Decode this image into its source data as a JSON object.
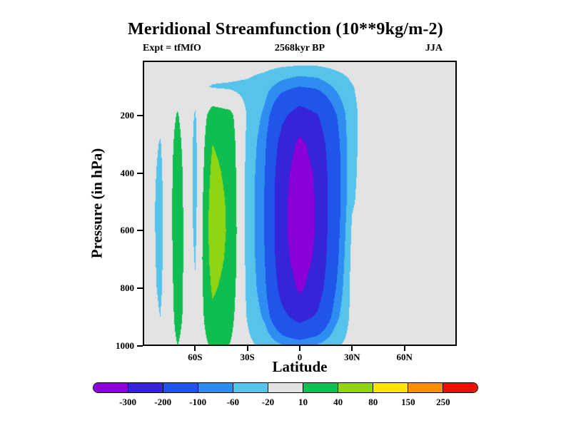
{
  "chart_data": {
    "type": "filled_contour",
    "title": "Meridional Streamfunction (10**9kg/m-2)",
    "annotations": {
      "left": "Expt = tfMfO",
      "center": "2568kyr BP",
      "right": "JJA"
    },
    "xlabel": "Latitude",
    "ylabel": "Pressure (in hPa)",
    "x_range": [
      -90,
      90
    ],
    "y_range": [
      10,
      1000
    ],
    "x_ticks": [
      {
        "value": -60,
        "label": "60S"
      },
      {
        "value": -30,
        "label": "30S"
      },
      {
        "value": 0,
        "label": "0"
      },
      {
        "value": 30,
        "label": "30N"
      },
      {
        "value": 60,
        "label": "60N"
      }
    ],
    "y_ticks": [
      {
        "value": 200,
        "label": "200"
      },
      {
        "value": 400,
        "label": "400"
      },
      {
        "value": 600,
        "label": "600"
      },
      {
        "value": 800,
        "label": "800"
      },
      {
        "value": 1000,
        "label": "1000"
      }
    ],
    "contour_levels": [
      -300,
      -200,
      -100,
      -60,
      -20,
      10,
      40,
      80,
      150,
      250
    ],
    "contour_colors": [
      "#8b00d6",
      "#3524d8",
      "#1f55e8",
      "#2f8df2",
      "#55c3ea",
      "#e3e3e3",
      "#0fbe4e",
      "#8fd612",
      "#ffe400",
      "#ff9000",
      "#ec1000"
    ],
    "colorbar_labels": [
      "-300",
      "-200",
      "-100",
      "-60",
      "-20",
      "10",
      "40",
      "80",
      "150",
      "250"
    ],
    "grid": {
      "lats": [
        -90,
        -80,
        -70,
        -60,
        -50,
        -40,
        -30,
        -20,
        -10,
        0,
        10,
        20,
        30,
        40,
        50,
        60,
        70,
        80,
        90
      ],
      "pressures": [
        10,
        100,
        200,
        300,
        400,
        500,
        600,
        700,
        800,
        900,
        1000
      ],
      "values_by_pressure": [
        [
          0,
          0,
          0,
          0,
          0,
          0,
          0,
          0,
          0,
          -2,
          -2,
          0,
          0,
          0,
          0,
          0,
          0,
          0,
          0
        ],
        [
          0,
          -5,
          0,
          -12,
          -22,
          -24,
          -28,
          -45,
          -80,
          -100,
          -90,
          -55,
          -22,
          -3,
          0,
          0,
          0,
          0,
          0
        ],
        [
          0,
          -12,
          12,
          -22,
          25,
          18,
          -22,
          -70,
          -180,
          -250,
          -205,
          -110,
          -30,
          0,
          0,
          0,
          0,
          0,
          0
        ],
        [
          0,
          -22,
          20,
          -26,
          40,
          26,
          -26,
          -90,
          -240,
          -320,
          -262,
          -130,
          -30,
          2,
          0,
          0,
          0,
          0,
          0
        ],
        [
          0,
          -26,
          25,
          -28,
          50,
          30,
          -28,
          -100,
          -268,
          -345,
          -285,
          -138,
          -28,
          2,
          0,
          0,
          0,
          0,
          0
        ],
        [
          0,
          -28,
          27,
          -28,
          58,
          33,
          -29,
          -104,
          -278,
          -352,
          -292,
          -140,
          -24,
          1,
          0,
          0,
          0,
          0,
          0
        ],
        [
          0,
          -28,
          27,
          -26,
          60,
          34,
          -29,
          -104,
          -278,
          -352,
          -292,
          -135,
          -14,
          0,
          0,
          0,
          0,
          0,
          0
        ],
        [
          0,
          -27,
          25,
          -22,
          55,
          32,
          -28,
          -100,
          -268,
          -342,
          -282,
          -125,
          -8,
          0,
          0,
          0,
          0,
          0,
          0
        ],
        [
          0,
          -25,
          22,
          -18,
          45,
          27,
          -26,
          -90,
          -238,
          -315,
          -252,
          -108,
          -6,
          0,
          0,
          0,
          0,
          0,
          0
        ],
        [
          0,
          -20,
          18,
          -12,
          32,
          20,
          -22,
          -68,
          -175,
          -235,
          -188,
          -78,
          -8,
          0,
          0,
          0,
          0,
          0,
          0
        ],
        [
          0,
          -10,
          10,
          -6,
          14,
          9,
          -12,
          -28,
          -55,
          -65,
          -52,
          -28,
          -4,
          0,
          0,
          0,
          0,
          0,
          0
        ]
      ]
    }
  }
}
